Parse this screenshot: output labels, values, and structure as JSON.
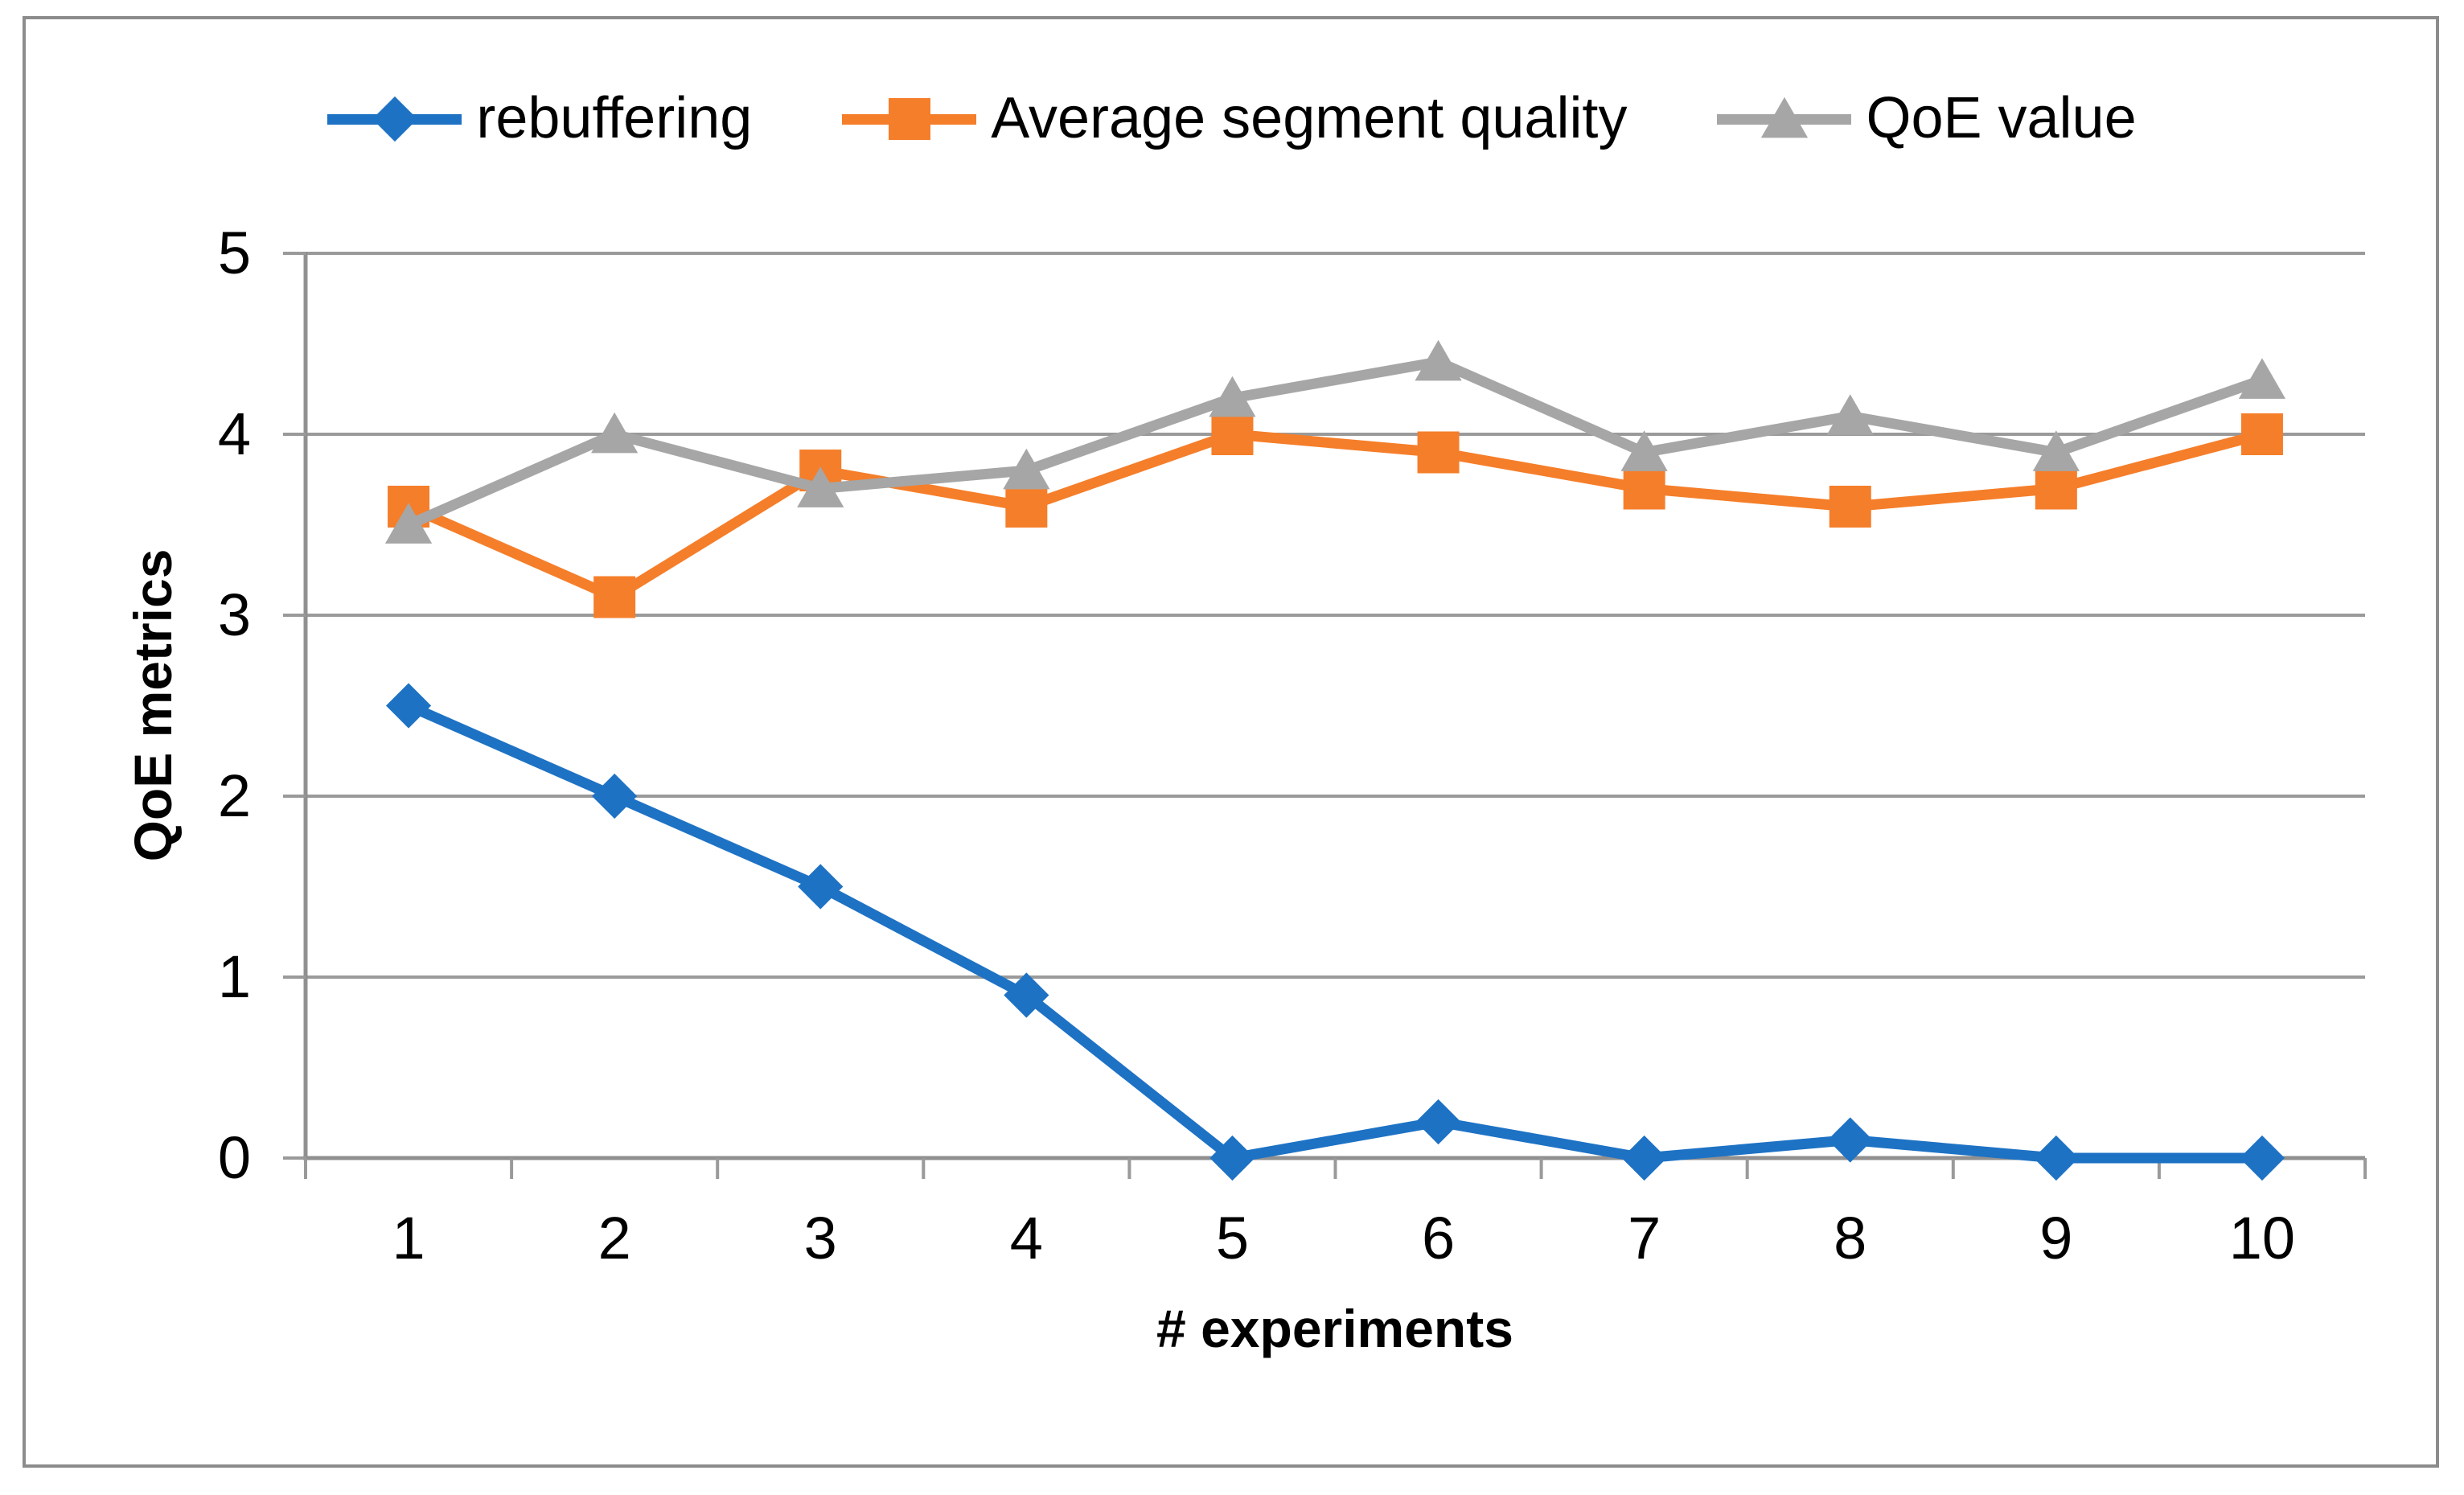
{
  "chart_data": {
    "type": "line",
    "title": "",
    "xlabel": "# experiments",
    "ylabel": "QoE metrics",
    "x": [
      1,
      2,
      3,
      4,
      5,
      6,
      7,
      8,
      9,
      10
    ],
    "xtick_labels": [
      "1",
      "2",
      "3",
      "4",
      "5",
      "6",
      "7",
      "8",
      "9",
      "10"
    ],
    "ytick_labels": [
      "0",
      "1",
      "2",
      "3",
      "4",
      "5"
    ],
    "ylim": [
      0,
      5
    ],
    "grid": "horizontal",
    "legend_position": "top-center",
    "series": [
      {
        "name": "rebuffering",
        "marker": "diamond",
        "color": "#1E72C4",
        "values": [
          2.5,
          2,
          1.5,
          0.9,
          0,
          0.2,
          0,
          0.1,
          0,
          0
        ]
      },
      {
        "name": "Average segment quality",
        "marker": "square",
        "color": "#F57E2A",
        "values": [
          3.6,
          3.1,
          3.8,
          3.6,
          4,
          3.9,
          3.7,
          3.6,
          3.7,
          4
        ]
      },
      {
        "name": "QoE value",
        "marker": "triangle",
        "color": "#A6A6A6",
        "values": [
          3.5,
          4,
          3.7,
          3.8,
          4.2,
          4.4,
          3.9,
          4.1,
          3.9,
          4.3
        ]
      }
    ],
    "style_colors": {
      "gridline": "#9A9A9A",
      "axis": "#909090",
      "tick": "#9A9A9A",
      "border": "#8C8C8C",
      "text": "#000000"
    }
  }
}
